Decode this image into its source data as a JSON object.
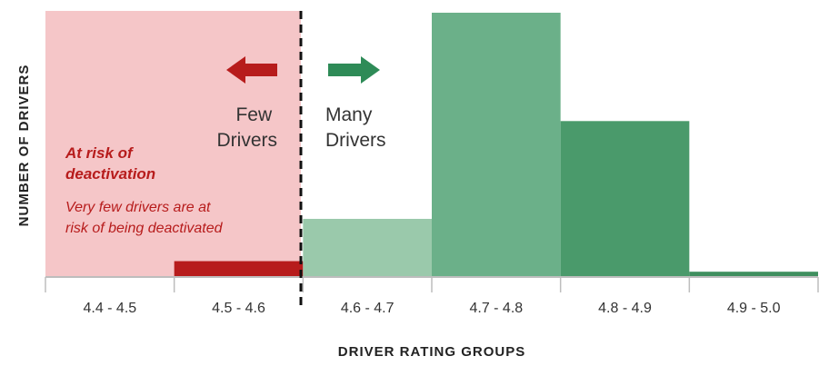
{
  "chart_data": {
    "type": "bar",
    "xlabel": "DRIVER RATING GROUPS",
    "ylabel": "NUMBER OF DRIVERS",
    "categories": [
      "4.4 - 4.5",
      "4.5 - 4.6",
      "4.6 - 4.7",
      "4.7 - 4.8",
      "4.8 - 4.9",
      "4.9 - 5.0"
    ],
    "values": [
      0,
      6,
      22,
      100,
      59,
      2
    ],
    "ylim": [
      0,
      100
    ],
    "bar_colors": [
      "#b71c1c",
      "#b71c1c",
      "#9ac9ab",
      "#6bb089",
      "#4a9a6b",
      "#3f8f5f"
    ],
    "grid": false,
    "threshold_category_index": 2,
    "risk_region_color": "#f5c6c8",
    "risk_text_color": "#b71c1c"
  },
  "annotations": {
    "left_label": [
      "Few",
      "Drivers"
    ],
    "right_label": [
      "Many",
      "Drivers"
    ],
    "risk_title": [
      "At risk of",
      "deactivation"
    ],
    "risk_description": [
      "Very few drivers are at",
      "risk of being deactivated"
    ],
    "left_arrow_color": "#b71c1c",
    "right_arrow_color": "#2e8b57",
    "left_arrow_icon": "arrow-left-icon",
    "right_arrow_icon": "arrow-right-icon"
  }
}
